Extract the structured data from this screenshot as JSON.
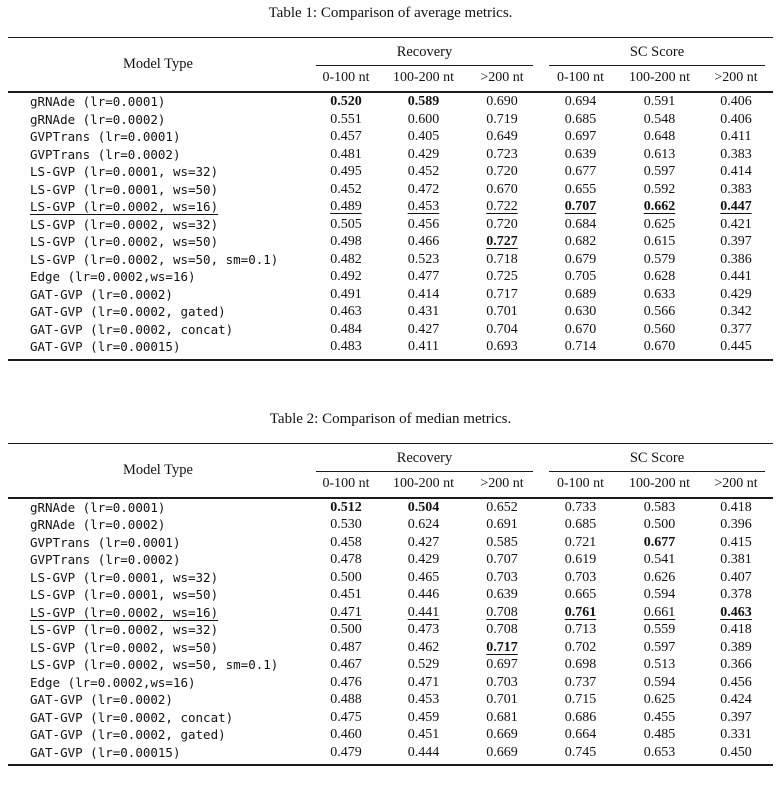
{
  "tables": [
    {
      "caption": "Table 1: Comparison of average metrics.",
      "header": {
        "model_type": "Model Type",
        "groups": [
          {
            "label": "Recovery"
          },
          {
            "label": "SC Score"
          }
        ],
        "subheaders": [
          "0-100 nt",
          "100-200 nt",
          ">200 nt",
          "0-100 nt",
          "100-200 nt",
          ">200 nt"
        ]
      },
      "rows": [
        {
          "cells": [
            {
              "t": "gRNAde (lr=0.0001)"
            },
            {
              "t": "0.520",
              "b": true
            },
            {
              "t": "0.589",
              "b": true
            },
            {
              "t": "0.690"
            },
            {
              "t": "0.694"
            },
            {
              "t": "0.591"
            },
            {
              "t": "0.406"
            }
          ]
        },
        {
          "cells": [
            {
              "t": "gRNAde (lr=0.0002)"
            },
            {
              "t": "0.551"
            },
            {
              "t": "0.600"
            },
            {
              "t": "0.719"
            },
            {
              "t": "0.685"
            },
            {
              "t": "0.548"
            },
            {
              "t": "0.406"
            }
          ]
        },
        {
          "cells": [
            {
              "t": "GVPTrans (lr=0.0001)"
            },
            {
              "t": "0.457"
            },
            {
              "t": "0.405"
            },
            {
              "t": "0.649"
            },
            {
              "t": "0.697"
            },
            {
              "t": "0.648"
            },
            {
              "t": "0.411"
            }
          ]
        },
        {
          "cells": [
            {
              "t": "GVPTrans (lr=0.0002)"
            },
            {
              "t": "0.481"
            },
            {
              "t": "0.429"
            },
            {
              "t": "0.723"
            },
            {
              "t": "0.639"
            },
            {
              "t": "0.613"
            },
            {
              "t": "0.383"
            }
          ]
        },
        {
          "cells": [
            {
              "t": "LS-GVP (lr=0.0001, ws=32)"
            },
            {
              "t": "0.495"
            },
            {
              "t": "0.452"
            },
            {
              "t": "0.720"
            },
            {
              "t": "0.677"
            },
            {
              "t": "0.597"
            },
            {
              "t": "0.414"
            }
          ]
        },
        {
          "cells": [
            {
              "t": "LS-GVP (lr=0.0001, ws=50)"
            },
            {
              "t": "0.452"
            },
            {
              "t": "0.472"
            },
            {
              "t": "0.670"
            },
            {
              "t": "0.655"
            },
            {
              "t": "0.592"
            },
            {
              "t": "0.383"
            }
          ]
        },
        {
          "cells": [
            {
              "t": "LS-GVP (lr=0.0002, ws=16)",
              "u": true
            },
            {
              "t": "0.489",
              "u": true
            },
            {
              "t": "0.453",
              "u": true
            },
            {
              "t": "0.722",
              "u": true
            },
            {
              "t": "0.707",
              "b": true,
              "u": true
            },
            {
              "t": "0.662",
              "b": true,
              "u": true
            },
            {
              "t": "0.447",
              "b": true,
              "u": true
            }
          ]
        },
        {
          "cells": [
            {
              "t": "LS-GVP (lr=0.0002, ws=32)"
            },
            {
              "t": "0.505"
            },
            {
              "t": "0.456"
            },
            {
              "t": "0.720"
            },
            {
              "t": "0.684"
            },
            {
              "t": "0.625"
            },
            {
              "t": "0.421"
            }
          ]
        },
        {
          "cells": [
            {
              "t": "LS-GVP (lr=0.0002, ws=50)"
            },
            {
              "t": "0.498"
            },
            {
              "t": "0.466"
            },
            {
              "t": "0.727",
              "b": true,
              "u": true
            },
            {
              "t": "0.682"
            },
            {
              "t": "0.615"
            },
            {
              "t": "0.397"
            }
          ]
        },
        {
          "cells": [
            {
              "t": "LS-GVP (lr=0.0002, ws=50, sm=0.1)"
            },
            {
              "t": "0.482"
            },
            {
              "t": "0.523"
            },
            {
              "t": "0.718"
            },
            {
              "t": "0.679"
            },
            {
              "t": "0.579"
            },
            {
              "t": "0.386"
            }
          ]
        },
        {
          "cells": [
            {
              "t": "Edge (lr=0.0002,ws=16)"
            },
            {
              "t": "0.492"
            },
            {
              "t": "0.477"
            },
            {
              "t": "0.725"
            },
            {
              "t": "0.705"
            },
            {
              "t": "0.628"
            },
            {
              "t": "0.441"
            }
          ]
        },
        {
          "cells": [
            {
              "t": "GAT-GVP (lr=0.0002)"
            },
            {
              "t": "0.491"
            },
            {
              "t": "0.414"
            },
            {
              "t": "0.717"
            },
            {
              "t": "0.689"
            },
            {
              "t": "0.633"
            },
            {
              "t": "0.429"
            }
          ]
        },
        {
          "cells": [
            {
              "t": "GAT-GVP (lr=0.0002, gated)"
            },
            {
              "t": "0.463"
            },
            {
              "t": "0.431"
            },
            {
              "t": "0.701"
            },
            {
              "t": "0.630"
            },
            {
              "t": "0.566"
            },
            {
              "t": "0.342"
            }
          ]
        },
        {
          "cells": [
            {
              "t": "GAT-GVP (lr=0.0002, concat)"
            },
            {
              "t": "0.484"
            },
            {
              "t": "0.427"
            },
            {
              "t": "0.704"
            },
            {
              "t": "0.670"
            },
            {
              "t": "0.560"
            },
            {
              "t": "0.377"
            }
          ]
        },
        {
          "cells": [
            {
              "t": "GAT-GVP (lr=0.00015)"
            },
            {
              "t": "0.483"
            },
            {
              "t": "0.411"
            },
            {
              "t": "0.693"
            },
            {
              "t": "0.714"
            },
            {
              "t": "0.670"
            },
            {
              "t": "0.445"
            }
          ]
        }
      ]
    },
    {
      "caption": "Table 2: Comparison of median metrics.",
      "header": {
        "model_type": "Model Type",
        "groups": [
          {
            "label": "Recovery"
          },
          {
            "label": "SC Score"
          }
        ],
        "subheaders": [
          "0-100 nt",
          "100-200 nt",
          ">200 nt",
          "0-100 nt",
          "100-200 nt",
          ">200 nt"
        ]
      },
      "rows": [
        {
          "cells": [
            {
              "t": "gRNAde (lr=0.0001)"
            },
            {
              "t": "0.512",
              "b": true
            },
            {
              "t": "0.504",
              "b": true
            },
            {
              "t": "0.652"
            },
            {
              "t": "0.733"
            },
            {
              "t": "0.583"
            },
            {
              "t": "0.418"
            }
          ]
        },
        {
          "cells": [
            {
              "t": "gRNAde (lr=0.0002)"
            },
            {
              "t": "0.530"
            },
            {
              "t": "0.624"
            },
            {
              "t": "0.691"
            },
            {
              "t": "0.685"
            },
            {
              "t": "0.500"
            },
            {
              "t": "0.396"
            }
          ]
        },
        {
          "cells": [
            {
              "t": "GVPTrans (lr=0.0001)"
            },
            {
              "t": "0.458"
            },
            {
              "t": "0.427"
            },
            {
              "t": "0.585"
            },
            {
              "t": "0.721"
            },
            {
              "t": "0.677",
              "b": true
            },
            {
              "t": "0.415"
            }
          ]
        },
        {
          "cells": [
            {
              "t": "GVPTrans (lr=0.0002)"
            },
            {
              "t": "0.478"
            },
            {
              "t": "0.429"
            },
            {
              "t": "0.707"
            },
            {
              "t": "0.619"
            },
            {
              "t": "0.541"
            },
            {
              "t": "0.381"
            }
          ]
        },
        {
          "cells": [
            {
              "t": "LS-GVP (lr=0.0001, ws=32)"
            },
            {
              "t": "0.500"
            },
            {
              "t": "0.465"
            },
            {
              "t": "0.703"
            },
            {
              "t": "0.703"
            },
            {
              "t": "0.626"
            },
            {
              "t": "0.407"
            }
          ]
        },
        {
          "cells": [
            {
              "t": "LS-GVP (lr=0.0001, ws=50)"
            },
            {
              "t": "0.451"
            },
            {
              "t": "0.446"
            },
            {
              "t": "0.639"
            },
            {
              "t": "0.665"
            },
            {
              "t": "0.594"
            },
            {
              "t": "0.378"
            }
          ]
        },
        {
          "cells": [
            {
              "t": "LS-GVP (lr=0.0002, ws=16)",
              "u": true
            },
            {
              "t": "0.471",
              "u": true
            },
            {
              "t": "0.441",
              "u": true
            },
            {
              "t": "0.708",
              "u": true
            },
            {
              "t": "0.761",
              "b": true,
              "u": true
            },
            {
              "t": "0.661",
              "u": true
            },
            {
              "t": "0.463",
              "b": true,
              "u": true
            }
          ]
        },
        {
          "cells": [
            {
              "t": "LS-GVP (lr=0.0002, ws=32)"
            },
            {
              "t": "0.500"
            },
            {
              "t": "0.473"
            },
            {
              "t": "0.708"
            },
            {
              "t": "0.713"
            },
            {
              "t": "0.559"
            },
            {
              "t": "0.418"
            }
          ]
        },
        {
          "cells": [
            {
              "t": "LS-GVP (lr=0.0002, ws=50)"
            },
            {
              "t": "0.487"
            },
            {
              "t": "0.462"
            },
            {
              "t": "0.717",
              "b": true,
              "u": true
            },
            {
              "t": "0.702"
            },
            {
              "t": "0.597"
            },
            {
              "t": "0.389"
            }
          ]
        },
        {
          "cells": [
            {
              "t": "LS-GVP (lr=0.0002, ws=50, sm=0.1)"
            },
            {
              "t": "0.467"
            },
            {
              "t": "0.529"
            },
            {
              "t": "0.697"
            },
            {
              "t": "0.698"
            },
            {
              "t": "0.513"
            },
            {
              "t": "0.366"
            }
          ]
        },
        {
          "cells": [
            {
              "t": "Edge (lr=0.0002,ws=16)"
            },
            {
              "t": "0.476"
            },
            {
              "t": "0.471"
            },
            {
              "t": "0.703"
            },
            {
              "t": "0.737"
            },
            {
              "t": "0.594"
            },
            {
              "t": "0.456"
            }
          ]
        },
        {
          "cells": [
            {
              "t": "GAT-GVP (lr=0.0002)"
            },
            {
              "t": "0.488"
            },
            {
              "t": "0.453"
            },
            {
              "t": "0.701"
            },
            {
              "t": "0.715"
            },
            {
              "t": "0.625"
            },
            {
              "t": "0.424"
            }
          ]
        },
        {
          "cells": [
            {
              "t": "GAT-GVP (lr=0.0002, concat)"
            },
            {
              "t": "0.475"
            },
            {
              "t": "0.459"
            },
            {
              "t": "0.681"
            },
            {
              "t": "0.686"
            },
            {
              "t": "0.455"
            },
            {
              "t": "0.397"
            }
          ]
        },
        {
          "cells": [
            {
              "t": "GAT-GVP (lr=0.0002, gated)"
            },
            {
              "t": "0.460"
            },
            {
              "t": "0.451"
            },
            {
              "t": "0.669"
            },
            {
              "t": "0.664"
            },
            {
              "t": "0.485"
            },
            {
              "t": "0.331"
            }
          ]
        },
        {
          "cells": [
            {
              "t": "GAT-GVP (lr=0.00015)"
            },
            {
              "t": "0.479"
            },
            {
              "t": "0.444"
            },
            {
              "t": "0.669"
            },
            {
              "t": "0.745"
            },
            {
              "t": "0.653"
            },
            {
              "t": "0.450"
            }
          ]
        }
      ]
    }
  ]
}
